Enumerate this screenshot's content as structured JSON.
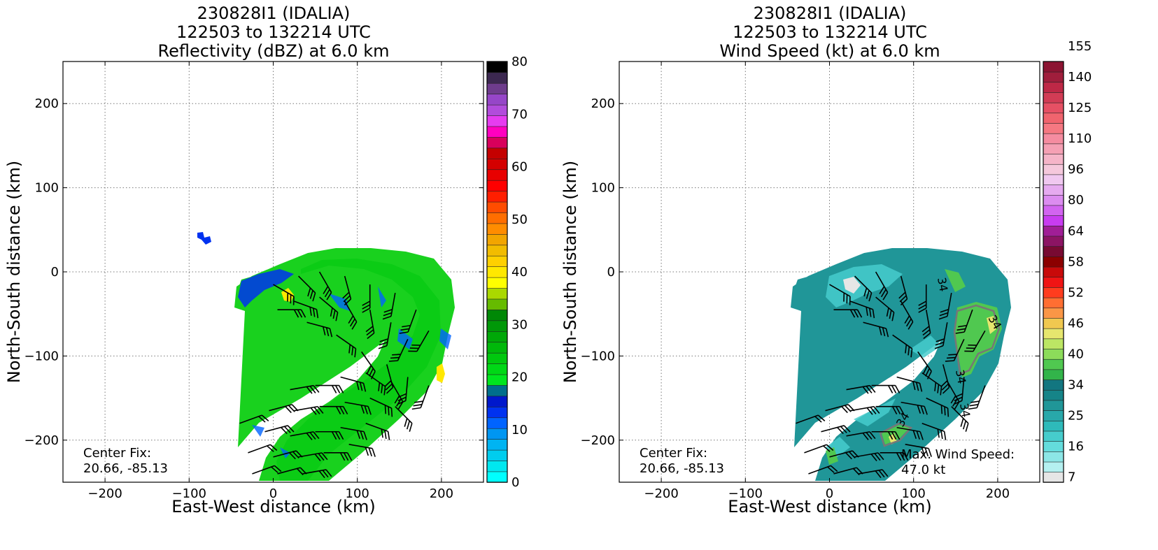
{
  "colors": {
    "dbz_levels": [
      "#00ffff",
      "#00e8f0",
      "#00cdee",
      "#00b4f2",
      "#0096f2",
      "#0064ff",
      "#0032f0",
      "#0018cc",
      "#006e8c",
      "#00e61e",
      "#00d816",
      "#00c80e",
      "#00b80a",
      "#00a808",
      "#009808",
      "#008806",
      "#66bb00",
      "#aad800",
      "#ffff00",
      "#ffe800",
      "#ffd000",
      "#f2bc00",
      "#f2a500",
      "#ff8c00",
      "#ff6e00",
      "#ff4c00",
      "#ff1e00",
      "#ff0000",
      "#e80000",
      "#d40000",
      "#c40000",
      "#d8005c",
      "#ff00c0",
      "#e63cf0",
      "#b24cdc",
      "#9646c8",
      "#6e3c8c",
      "#3c2850",
      "#000000"
    ],
    "wind_levels": [
      "#e6e6e6",
      "#b4f0f0",
      "#8ce6e6",
      "#64dcdc",
      "#46cccc",
      "#2ebaba",
      "#28a8aa",
      "#209698",
      "#168488",
      "#127680",
      "#32b44a",
      "#50c850",
      "#8cdc5a",
      "#bce664",
      "#e6e66e",
      "#f0c850",
      "#fa9646",
      "#ff6e32",
      "#ff3c1e",
      "#f01414",
      "#c80a0a",
      "#8c0000",
      "#780a32",
      "#8c1464",
      "#a01e96",
      "#c83cf0",
      "#d264f0",
      "#dc8cf0",
      "#e6aaf0",
      "#f0c8f0",
      "#f5c8dc",
      "#f5b4c8",
      "#f5a0b4",
      "#f58ca0",
      "#f57882",
      "#f0646e",
      "#e65064",
      "#d23c55",
      "#be2846",
      "#a01e3c",
      "#8c1432"
    ],
    "grid": "#777777"
  },
  "panels": [
    {
      "title": [
        "230828I1 (IDALIA)",
        "122503 to 132214 UTC",
        "Reflectivity (dBZ) at 6.0 km"
      ],
      "xlabel": "East-West distance (km)",
      "ylabel": "North-South distance (km)",
      "annotation": [
        "Center Fix:",
        "20.66, -85.13"
      ]
    },
    {
      "title": [
        "230828I1 (IDALIA)",
        "122503 to 132214 UTC",
        "Wind Speed (kt) at 6.0 km"
      ],
      "xlabel": "East-West distance (km)",
      "ylabel": "North-South distance (km)",
      "annotation": [
        "Center Fix:",
        "20.66, -85.13"
      ],
      "annotation2": [
        "Max. Wind Speed:",
        "47.0 kt"
      ]
    }
  ],
  "chart_data": [
    {
      "type": "heatmap",
      "title": "230828I1 (IDALIA) 122503 to 132214 UTC Reflectivity (dBZ) at 6.0 km",
      "xlabel": "East-West distance (km)",
      "ylabel": "North-South distance (km)",
      "xlim": [
        -250,
        250
      ],
      "ylim": [
        -250,
        250
      ],
      "xticks": [
        -200,
        -100,
        0,
        100,
        200
      ],
      "yticks": [
        -200,
        -100,
        0,
        100,
        200
      ],
      "grid": true,
      "colorbar": {
        "unit": "dBZ",
        "min": 0,
        "max": 80,
        "ticks": [
          0,
          10,
          20,
          30,
          40,
          50,
          60,
          70,
          80
        ]
      },
      "center_fix": [
        20.66,
        -85.13
      ],
      "regions": [
        {
          "desc": "curved rainband arc, mostly 15-28 dBZ",
          "center_km": [
            100,
            -100
          ]
        },
        {
          "desc": "isolated echo",
          "center_km": [
            -85,
            40
          ],
          "value_dbz": 12
        },
        {
          "desc": "yellow cores",
          "points_km": [
            [
              18,
              -28
            ],
            [
              198,
              -120
            ]
          ],
          "value_dbz": 38
        }
      ],
      "wind_barbs": true
    },
    {
      "type": "heatmap",
      "title": "230828I1 (IDALIA) 122503 to 132214 UTC Wind Speed (kt) at 6.0 km",
      "xlabel": "East-West distance (km)",
      "ylabel": "North-South distance (km)",
      "xlim": [
        -250,
        250
      ],
      "ylim": [
        -250,
        250
      ],
      "xticks": [
        -200,
        -100,
        0,
        100,
        200
      ],
      "yticks": [
        -200,
        -100,
        0,
        100,
        200
      ],
      "grid": true,
      "colorbar": {
        "unit": "kt",
        "min": 7,
        "max": 155,
        "ticks": [
          7,
          16,
          25,
          34,
          40,
          46,
          52,
          58,
          64,
          80,
          96,
          110,
          125,
          140,
          155
        ]
      },
      "center_fix": [
        20.66,
        -85.13
      ],
      "max_wind_speed_kt": 47.0,
      "contour_label": "34",
      "wind_barbs": true
    }
  ]
}
